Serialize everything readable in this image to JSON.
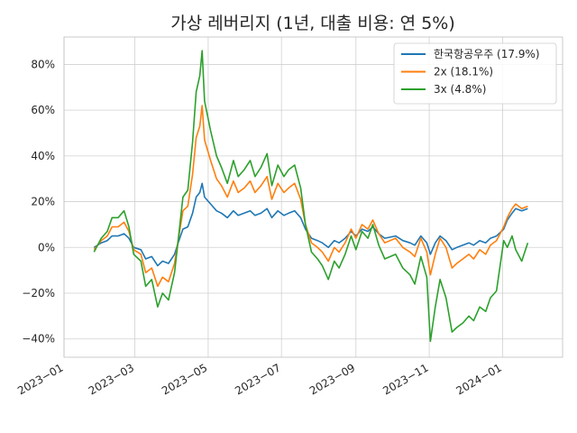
{
  "chart_data": {
    "type": "line",
    "title": "가상 레버리지 (1년, 대출 비용: 연 5%)",
    "xlabel": "",
    "ylabel": "",
    "x_range": [
      "2023-01-01",
      "2024-02-20"
    ],
    "ylim": [
      -48,
      92
    ],
    "y_ticks": [
      -40,
      -20,
      0,
      20,
      40,
      60,
      80
    ],
    "y_tick_labels": [
      "−40%",
      "−20%",
      "0%",
      "20%",
      "40%",
      "60%",
      "80%"
    ],
    "x_ticks": [
      "2023-01-01",
      "2023-03-01",
      "2023-05-01",
      "2023-07-01",
      "2023-09-01",
      "2023-11-01",
      "2024-01-01"
    ],
    "x_tick_labels": [
      "2023−01",
      "2023−03",
      "2023−05",
      "2023−07",
      "2023−09",
      "2023−11",
      "2024−01"
    ],
    "grid": true,
    "legend_position": "top-right",
    "series": [
      {
        "name": "한국항공우주 (17.9%)",
        "color": "#1f77b4",
        "points": [
          [
            "2023-01-26",
            0
          ],
          [
            "2023-02-01",
            2
          ],
          [
            "2023-02-06",
            3
          ],
          [
            "2023-02-10",
            5
          ],
          [
            "2023-02-15",
            5
          ],
          [
            "2023-02-20",
            6
          ],
          [
            "2023-02-24",
            4
          ],
          [
            "2023-02-28",
            0
          ],
          [
            "2023-03-06",
            -1
          ],
          [
            "2023-03-10",
            -5
          ],
          [
            "2023-03-15",
            -4
          ],
          [
            "2023-03-20",
            -8
          ],
          [
            "2023-03-24",
            -6
          ],
          [
            "2023-03-29",
            -7
          ],
          [
            "2023-04-03",
            -3
          ],
          [
            "2023-04-06",
            2
          ],
          [
            "2023-04-10",
            8
          ],
          [
            "2023-04-14",
            9
          ],
          [
            "2023-04-18",
            15
          ],
          [
            "2023-04-21",
            22
          ],
          [
            "2023-04-24",
            24
          ],
          [
            "2023-04-26",
            28
          ],
          [
            "2023-04-28",
            22
          ],
          [
            "2023-05-03",
            19
          ],
          [
            "2023-05-08",
            16
          ],
          [
            "2023-05-12",
            15
          ],
          [
            "2023-05-17",
            13
          ],
          [
            "2023-05-22",
            16
          ],
          [
            "2023-05-26",
            14
          ],
          [
            "2023-05-31",
            15
          ],
          [
            "2023-06-05",
            16
          ],
          [
            "2023-06-09",
            14
          ],
          [
            "2023-06-14",
            15
          ],
          [
            "2023-06-19",
            17
          ],
          [
            "2023-06-23",
            13
          ],
          [
            "2023-06-28",
            16
          ],
          [
            "2023-07-03",
            14
          ],
          [
            "2023-07-07",
            15
          ],
          [
            "2023-07-12",
            16
          ],
          [
            "2023-07-17",
            13
          ],
          [
            "2023-07-21",
            8
          ],
          [
            "2023-07-26",
            4
          ],
          [
            "2023-07-31",
            3
          ],
          [
            "2023-08-04",
            2
          ],
          [
            "2023-08-09",
            0
          ],
          [
            "2023-08-14",
            3
          ],
          [
            "2023-08-18",
            2
          ],
          [
            "2023-08-23",
            4
          ],
          [
            "2023-08-28",
            7
          ],
          [
            "2023-09-01",
            5
          ],
          [
            "2023-09-06",
            8
          ],
          [
            "2023-09-11",
            7
          ],
          [
            "2023-09-15",
            9
          ],
          [
            "2023-09-20",
            6
          ],
          [
            "2023-09-25",
            4
          ],
          [
            "2023-10-04",
            5
          ],
          [
            "2023-10-10",
            3
          ],
          [
            "2023-10-16",
            2
          ],
          [
            "2023-10-20",
            1
          ],
          [
            "2023-10-25",
            5
          ],
          [
            "2023-10-30",
            2
          ],
          [
            "2023-11-02",
            -3
          ],
          [
            "2023-11-06",
            2
          ],
          [
            "2023-11-10",
            5
          ],
          [
            "2023-11-15",
            3
          ],
          [
            "2023-11-20",
            -1
          ],
          [
            "2023-11-24",
            0
          ],
          [
            "2023-11-29",
            1
          ],
          [
            "2023-12-04",
            2
          ],
          [
            "2023-12-08",
            1
          ],
          [
            "2023-12-13",
            3
          ],
          [
            "2023-12-18",
            2
          ],
          [
            "2023-12-22",
            4
          ],
          [
            "2023-12-27",
            5
          ],
          [
            "2024-01-02",
            8
          ],
          [
            "2024-01-05",
            12
          ],
          [
            "2024-01-09",
            15
          ],
          [
            "2024-01-12",
            17
          ],
          [
            "2024-01-17",
            16
          ],
          [
            "2024-01-22",
            17
          ]
        ]
      },
      {
        "name": "2x (18.1%)",
        "color": "#ff7f0e",
        "points": [
          [
            "2023-01-26",
            -1
          ],
          [
            "2023-02-01",
            3
          ],
          [
            "2023-02-06",
            5
          ],
          [
            "2023-02-10",
            9
          ],
          [
            "2023-02-15",
            9
          ],
          [
            "2023-02-20",
            11
          ],
          [
            "2023-02-24",
            7
          ],
          [
            "2023-02-28",
            -1
          ],
          [
            "2023-03-06",
            -3
          ],
          [
            "2023-03-10",
            -11
          ],
          [
            "2023-03-15",
            -9
          ],
          [
            "2023-03-20",
            -17
          ],
          [
            "2023-03-24",
            -13
          ],
          [
            "2023-03-29",
            -15
          ],
          [
            "2023-04-03",
            -7
          ],
          [
            "2023-04-06",
            3
          ],
          [
            "2023-04-10",
            16
          ],
          [
            "2023-04-14",
            18
          ],
          [
            "2023-04-18",
            32
          ],
          [
            "2023-04-21",
            48
          ],
          [
            "2023-04-24",
            53
          ],
          [
            "2023-04-26",
            62
          ],
          [
            "2023-04-28",
            47
          ],
          [
            "2023-05-03",
            38
          ],
          [
            "2023-05-08",
            30
          ],
          [
            "2023-05-12",
            27
          ],
          [
            "2023-05-17",
            22
          ],
          [
            "2023-05-22",
            29
          ],
          [
            "2023-05-26",
            24
          ],
          [
            "2023-05-31",
            26
          ],
          [
            "2023-06-05",
            29
          ],
          [
            "2023-06-09",
            24
          ],
          [
            "2023-06-14",
            27
          ],
          [
            "2023-06-19",
            31
          ],
          [
            "2023-06-23",
            21
          ],
          [
            "2023-06-28",
            28
          ],
          [
            "2023-07-03",
            24
          ],
          [
            "2023-07-07",
            26
          ],
          [
            "2023-07-12",
            28
          ],
          [
            "2023-07-17",
            21
          ],
          [
            "2023-07-21",
            10
          ],
          [
            "2023-07-26",
            2
          ],
          [
            "2023-07-31",
            0
          ],
          [
            "2023-08-04",
            -2
          ],
          [
            "2023-08-09",
            -6
          ],
          [
            "2023-08-14",
            0
          ],
          [
            "2023-08-18",
            -2
          ],
          [
            "2023-08-23",
            2
          ],
          [
            "2023-08-28",
            8
          ],
          [
            "2023-09-01",
            4
          ],
          [
            "2023-09-06",
            10
          ],
          [
            "2023-09-11",
            8
          ],
          [
            "2023-09-15",
            12
          ],
          [
            "2023-09-20",
            6
          ],
          [
            "2023-09-25",
            2
          ],
          [
            "2023-10-04",
            4
          ],
          [
            "2023-10-10",
            0
          ],
          [
            "2023-10-16",
            -2
          ],
          [
            "2023-10-20",
            -4
          ],
          [
            "2023-10-25",
            4
          ],
          [
            "2023-10-30",
            -2
          ],
          [
            "2023-11-02",
            -12
          ],
          [
            "2023-11-06",
            -3
          ],
          [
            "2023-11-10",
            4
          ],
          [
            "2023-11-15",
            0
          ],
          [
            "2023-11-20",
            -9
          ],
          [
            "2023-11-24",
            -7
          ],
          [
            "2023-11-29",
            -5
          ],
          [
            "2023-12-04",
            -3
          ],
          [
            "2023-12-08",
            -5
          ],
          [
            "2023-12-13",
            -1
          ],
          [
            "2023-12-18",
            -3
          ],
          [
            "2023-12-22",
            1
          ],
          [
            "2023-12-27",
            3
          ],
          [
            "2024-01-02",
            9
          ],
          [
            "2024-01-05",
            13
          ],
          [
            "2024-01-09",
            17
          ],
          [
            "2024-01-12",
            19
          ],
          [
            "2024-01-17",
            17
          ],
          [
            "2024-01-22",
            18
          ]
        ]
      },
      {
        "name": "3x (4.8%)",
        "color": "#2ca02c",
        "points": [
          [
            "2023-01-26",
            -2
          ],
          [
            "2023-02-01",
            4
          ],
          [
            "2023-02-06",
            7
          ],
          [
            "2023-02-10",
            13
          ],
          [
            "2023-02-15",
            13
          ],
          [
            "2023-02-20",
            16
          ],
          [
            "2023-02-24",
            9
          ],
          [
            "2023-02-28",
            -3
          ],
          [
            "2023-03-06",
            -6
          ],
          [
            "2023-03-10",
            -17
          ],
          [
            "2023-03-15",
            -14
          ],
          [
            "2023-03-20",
            -26
          ],
          [
            "2023-03-24",
            -20
          ],
          [
            "2023-03-29",
            -23
          ],
          [
            "2023-04-03",
            -11
          ],
          [
            "2023-04-06",
            3
          ],
          [
            "2023-04-10",
            22
          ],
          [
            "2023-04-14",
            25
          ],
          [
            "2023-04-18",
            46
          ],
          [
            "2023-04-21",
            68
          ],
          [
            "2023-04-24",
            75
          ],
          [
            "2023-04-26",
            86
          ],
          [
            "2023-04-28",
            64
          ],
          [
            "2023-05-03",
            51
          ],
          [
            "2023-05-08",
            40
          ],
          [
            "2023-05-12",
            35
          ],
          [
            "2023-05-17",
            28
          ],
          [
            "2023-05-22",
            38
          ],
          [
            "2023-05-26",
            31
          ],
          [
            "2023-05-31",
            34
          ],
          [
            "2023-06-05",
            38
          ],
          [
            "2023-06-09",
            31
          ],
          [
            "2023-06-14",
            35
          ],
          [
            "2023-06-19",
            41
          ],
          [
            "2023-06-23",
            27
          ],
          [
            "2023-06-28",
            36
          ],
          [
            "2023-07-03",
            31
          ],
          [
            "2023-07-07",
            34
          ],
          [
            "2023-07-12",
            36
          ],
          [
            "2023-07-17",
            26
          ],
          [
            "2023-07-21",
            10
          ],
          [
            "2023-07-26",
            -2
          ],
          [
            "2023-07-31",
            -5
          ],
          [
            "2023-08-04",
            -8
          ],
          [
            "2023-08-09",
            -14
          ],
          [
            "2023-08-14",
            -6
          ],
          [
            "2023-08-18",
            -9
          ],
          [
            "2023-08-23",
            -3
          ],
          [
            "2023-08-28",
            5
          ],
          [
            "2023-09-01",
            -1
          ],
          [
            "2023-09-06",
            7
          ],
          [
            "2023-09-11",
            4
          ],
          [
            "2023-09-15",
            10
          ],
          [
            "2023-09-20",
            1
          ],
          [
            "2023-09-25",
            -5
          ],
          [
            "2023-10-04",
            -3
          ],
          [
            "2023-10-10",
            -9
          ],
          [
            "2023-10-16",
            -12
          ],
          [
            "2023-10-20",
            -16
          ],
          [
            "2023-10-25",
            -4
          ],
          [
            "2023-10-30",
            -13
          ],
          [
            "2023-11-02",
            -41
          ],
          [
            "2023-11-06",
            -26
          ],
          [
            "2023-11-10",
            -14
          ],
          [
            "2023-11-15",
            -22
          ],
          [
            "2023-11-20",
            -37
          ],
          [
            "2023-11-24",
            -35
          ],
          [
            "2023-11-29",
            -33
          ],
          [
            "2023-12-04",
            -30
          ],
          [
            "2023-12-08",
            -32
          ],
          [
            "2023-12-13",
            -26
          ],
          [
            "2023-12-18",
            -28
          ],
          [
            "2023-12-22",
            -22
          ],
          [
            "2023-12-27",
            -19
          ],
          [
            "2024-01-02",
            3
          ],
          [
            "2024-01-05",
            0
          ],
          [
            "2024-01-09",
            5
          ],
          [
            "2024-01-12",
            -1
          ],
          [
            "2024-01-17",
            -6
          ],
          [
            "2024-01-22",
            2
          ]
        ]
      }
    ]
  }
}
